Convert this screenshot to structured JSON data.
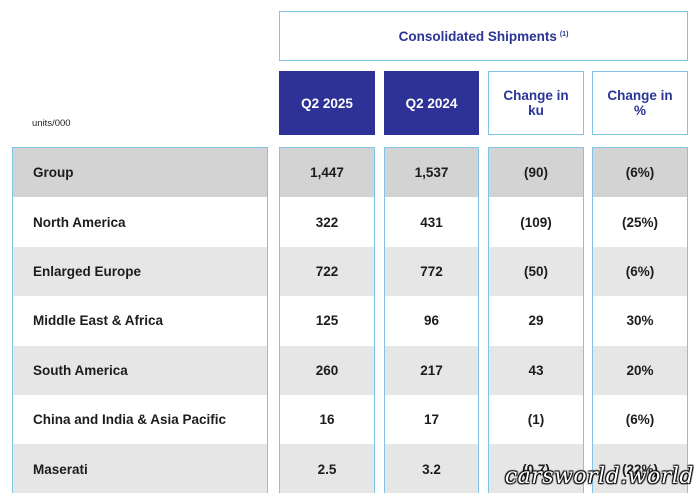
{
  "title": "Consolidated Shipments",
  "title_footnote": "(1)",
  "units_label": "units/000",
  "columns": {
    "q2_2025": "Q2 2025",
    "q2_2024": "Q2 2024",
    "change_ku": "Change in ku",
    "change_pct": "Change in %"
  },
  "rows": [
    {
      "region": "Group",
      "q2_2025": "1,447",
      "q2_2024": "1,537",
      "change_ku": "(90)",
      "change_pct": "(6%)"
    },
    {
      "region": "North America",
      "q2_2025": "322",
      "q2_2024": "431",
      "change_ku": "(109)",
      "change_pct": "(25%)"
    },
    {
      "region": "Enlarged Europe",
      "q2_2025": "722",
      "q2_2024": "772",
      "change_ku": "(50)",
      "change_pct": "(6%)"
    },
    {
      "region": "Middle East & Africa",
      "q2_2025": "125",
      "q2_2024": "96",
      "change_ku": "29",
      "change_pct": "30%"
    },
    {
      "region": "South America",
      "q2_2025": "260",
      "q2_2024": "217",
      "change_ku": "43",
      "change_pct": "20%"
    },
    {
      "region": "China and India & Asia Pacific",
      "q2_2025": "16",
      "q2_2024": "17",
      "change_ku": "(1)",
      "change_pct": "(6%)"
    },
    {
      "region": "Maserati",
      "q2_2025": "2.5",
      "q2_2024": "3.2",
      "change_ku": "(0.7)",
      "change_pct": "(22%)"
    }
  ],
  "watermark": "carsworld.world",
  "colors": {
    "header_dark": "#2e3196",
    "header_text": "#2a3596",
    "border": "#7fc4e8",
    "group_row": "#d3d3d3",
    "alt_row": "#e6e6e6"
  }
}
